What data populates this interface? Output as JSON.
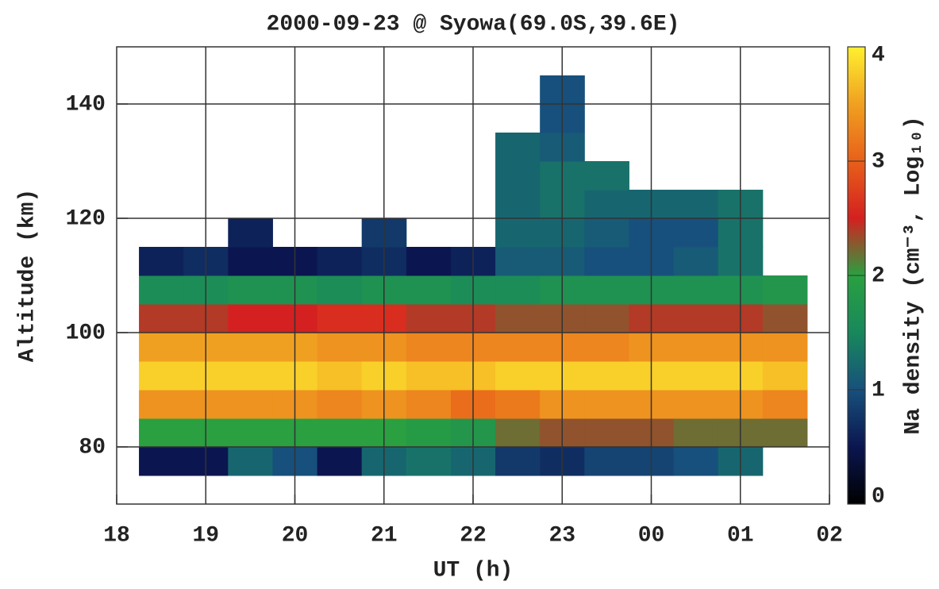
{
  "chart_data": {
    "type": "heatmap",
    "title": "2000-09-23 @ Syowa(69.0S,39.6E)",
    "x_label": "UT (h)",
    "y_label": "Altitude (km)",
    "colorbar_label": "Na density (cm⁻³, Log₁₀)",
    "xlim": [
      18,
      26
    ],
    "xticks": [
      18,
      19,
      20,
      21,
      22,
      23,
      {
        "value": 24,
        "label": "00"
      },
      {
        "value": 25,
        "label": "01"
      },
      {
        "value": 26,
        "label": "02"
      }
    ],
    "ylim": [
      70,
      150
    ],
    "yticks": [
      80,
      100,
      120,
      140
    ],
    "clim": [
      0,
      4
    ],
    "cticks": [
      0,
      1,
      2,
      3,
      4
    ],
    "colormap": [
      "#000000",
      "#0b1650",
      "#17507c",
      "#18885c",
      "#2aa040",
      "#d42020",
      "#e8601a",
      "#f0a020",
      "#fff030"
    ],
    "grid": true,
    "xbins": [
      18.25,
      18.75,
      19.25,
      19.75,
      20.25,
      20.75,
      21.25,
      21.75,
      22.25,
      22.75,
      23.25,
      23.75,
      24.25,
      24.75,
      25.25,
      25.75
    ],
    "ybins": [
      75,
      80,
      85,
      90,
      95,
      100,
      105,
      110,
      115,
      120,
      125,
      130,
      135,
      140,
      145
    ],
    "values": [
      [
        0.5,
        0.5,
        1.2,
        1.0,
        0.5,
        1.2,
        1.3,
        1.2,
        0.8,
        0.7,
        0.9,
        0.9,
        1.0,
        1.2,
        null
      ],
      [
        2.0,
        2.0,
        2.0,
        2.0,
        2.0,
        2.0,
        1.9,
        1.8,
        2.2,
        2.3,
        2.3,
        2.3,
        2.2,
        2.2,
        2.2
      ],
      [
        3.4,
        3.4,
        3.4,
        3.4,
        3.3,
        3.4,
        3.3,
        3.1,
        3.2,
        3.4,
        3.4,
        3.4,
        3.4,
        3.4,
        3.3
      ],
      [
        3.8,
        3.8,
        3.8,
        3.8,
        3.7,
        3.8,
        3.7,
        3.7,
        3.8,
        3.8,
        3.8,
        3.8,
        3.8,
        3.8,
        3.7
      ],
      [
        3.5,
        3.5,
        3.5,
        3.5,
        3.4,
        3.4,
        3.3,
        3.3,
        3.3,
        3.3,
        3.3,
        3.4,
        3.4,
        3.4,
        3.4
      ],
      [
        2.4,
        2.4,
        2.5,
        2.5,
        2.6,
        2.6,
        2.4,
        2.4,
        2.3,
        2.3,
        2.3,
        2.4,
        2.4,
        2.4,
        2.3
      ],
      [
        1.6,
        1.6,
        1.7,
        1.7,
        1.6,
        1.7,
        1.7,
        1.6,
        1.6,
        1.7,
        1.7,
        1.7,
        1.7,
        1.7,
        1.8
      ],
      [
        0.6,
        0.7,
        0.5,
        0.5,
        0.6,
        0.7,
        0.5,
        0.6,
        1.1,
        1.1,
        1.0,
        1.0,
        1.1,
        1.3,
        null
      ],
      [
        null,
        null,
        0.6,
        null,
        null,
        0.8,
        null,
        null,
        1.2,
        1.2,
        1.1,
        1.0,
        1.0,
        1.3,
        null
      ],
      [
        null,
        null,
        null,
        null,
        null,
        null,
        null,
        null,
        1.2,
        1.3,
        1.2,
        1.2,
        1.2,
        1.3,
        null
      ],
      [
        null,
        null,
        null,
        null,
        null,
        null,
        null,
        null,
        1.2,
        1.3,
        1.3,
        null,
        null,
        null,
        null
      ],
      [
        null,
        null,
        null,
        null,
        null,
        null,
        null,
        null,
        1.2,
        1.1,
        null,
        null,
        null,
        null,
        null
      ],
      [
        null,
        null,
        null,
        null,
        null,
        null,
        null,
        null,
        null,
        1.0,
        null,
        null,
        null,
        null,
        null
      ],
      [
        null,
        null,
        null,
        null,
        null,
        null,
        null,
        null,
        null,
        1.0,
        null,
        null,
        null,
        null,
        null
      ]
    ]
  }
}
